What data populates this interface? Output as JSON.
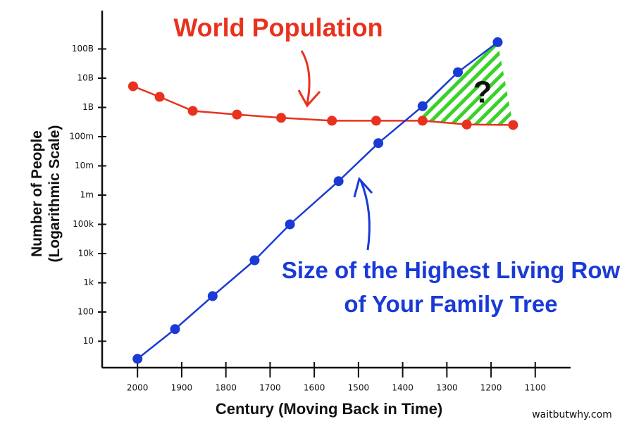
{
  "chart_data": {
    "type": "line",
    "title": "World Population",
    "series_label": "Size of the Highest Living Row of Your Family Tree",
    "annotation": "?",
    "credit": "waitbutwhy.com",
    "x_label": "Century (Moving Back in Time)",
    "y_label": "Number of People (Logarithmic Scale)",
    "log_y": true,
    "xlim": [
      2080,
      1020
    ],
    "xticks": [
      2000,
      1900,
      1800,
      1700,
      1600,
      1500,
      1400,
      1300,
      1200,
      1100
    ],
    "ylim": [
      1,
      1000000000000
    ],
    "yticks": [
      10,
      100,
      {
        "value": 1000,
        "label": "1k"
      },
      {
        "value": 10000,
        "label": "10k"
      },
      {
        "value": 100000,
        "label": "100k"
      },
      {
        "value": 1000000,
        "label": "1m"
      },
      {
        "value": 10000000,
        "label": "10m"
      },
      {
        "value": 100000000,
        "label": "100m"
      },
      {
        "value": 1000000000,
        "label": "1B"
      },
      {
        "value": 10000000000,
        "label": "10B"
      },
      {
        "value": 100000000000,
        "label": "100B"
      }
    ],
    "series": [
      {
        "name": "World Population",
        "color": "#e8321e",
        "x": [
          2010,
          1950,
          1875,
          1775,
          1675,
          1560,
          1460,
          1355,
          1255,
          1150
        ],
        "values": [
          5300000000,
          2300000000,
          760000000,
          570000000,
          440000000,
          350000000,
          350000000,
          350000000,
          260000000,
          250000000
        ]
      },
      {
        "name": "Size of the Highest Living Row of Your Family Tree",
        "color": "#1a3ad6",
        "x": [
          2000,
          1915,
          1830,
          1735,
          1655,
          1545,
          1455,
          1355,
          1275,
          1185
        ],
        "values": [
          2.5,
          26,
          350,
          5900,
          100000,
          3000000,
          60000000,
          1100000000,
          16000000000,
          170000000000
        ]
      }
    ],
    "region_color": "#3ad12a"
  }
}
